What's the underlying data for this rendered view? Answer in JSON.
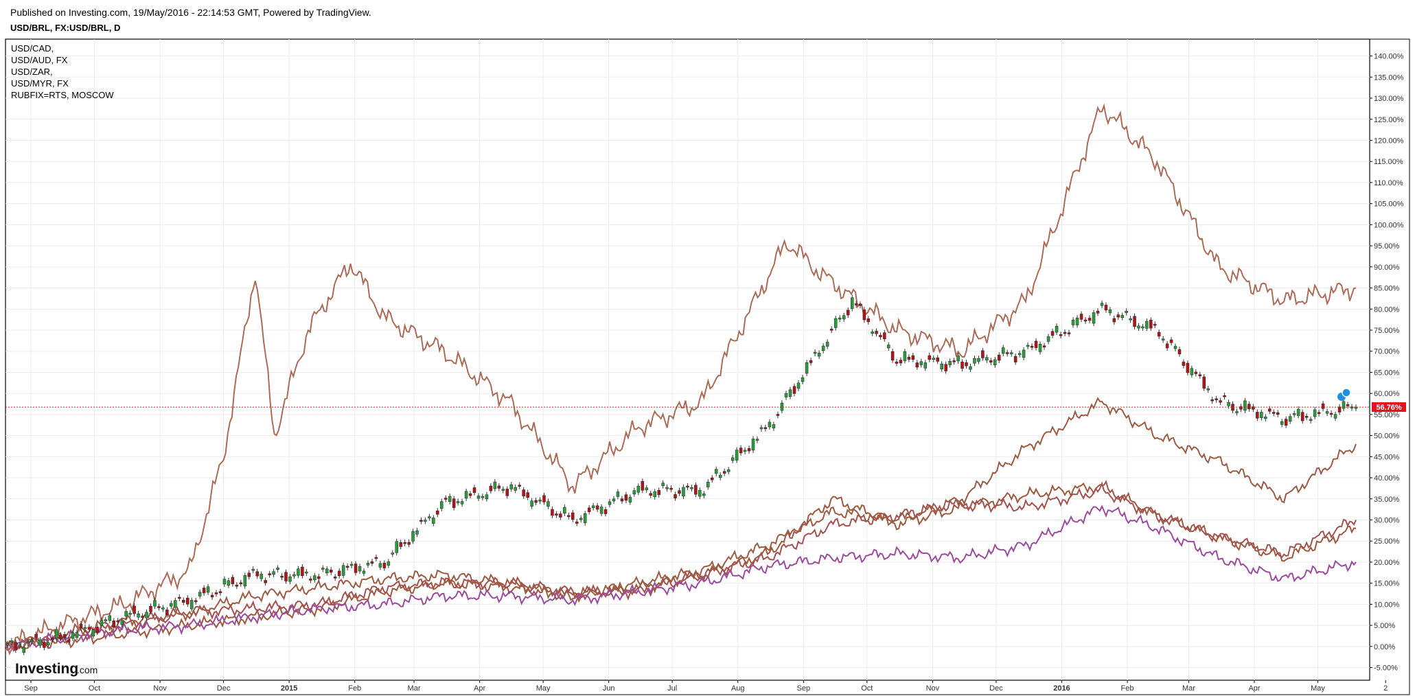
{
  "header": {
    "published": "Published on Investing.com, 19/May/2016 - 22:14:53 GMT, Powered by TradingView.",
    "title": "USD/BRL, FX:USD/BRL, D"
  },
  "brand": {
    "logo_main": "Investing",
    "logo_suffix": ".com"
  },
  "price_badge": "56.76%",
  "colors": {
    "brl_up": "#2e9b3c",
    "brl_down": "#b3141a",
    "cad": "#a0563a",
    "aud": "#a5504f",
    "zar": "#9d5a43",
    "myr": "#9b4a9e",
    "rub": "#ad6a56",
    "current_line": "#e8111a",
    "grid": "#ebebeb"
  },
  "chart_data": {
    "type": "line",
    "title": "USD/BRL, FX:USD/BRL, D",
    "ylim": [
      -8,
      144
    ],
    "y_ticks": [
      "-5.00%",
      "0.00%",
      "5.00%",
      "10.00%",
      "15.00%",
      "20.00%",
      "25.00%",
      "30.00%",
      "35.00%",
      "40.00%",
      "45.00%",
      "50.00%",
      "55.00%",
      "60.00%",
      "65.00%",
      "70.00%",
      "75.00%",
      "80.00%",
      "85.00%",
      "90.00%",
      "95.00%",
      "100.00%",
      "105.00%",
      "110.00%",
      "115.00%",
      "120.00%",
      "125.00%",
      "130.00%",
      "135.00%",
      "140.00%"
    ],
    "x_ticks": [
      "Sep",
      "Oct",
      "Nov",
      "Dec",
      "2015",
      "Feb",
      "Mar",
      "Apr",
      "May",
      "Jun",
      "Jul",
      "Aug",
      "Sep",
      "Oct",
      "Nov",
      "Dec",
      "2016",
      "Feb",
      "Mar",
      "Apr",
      "May",
      "2"
    ],
    "grid": true,
    "legend_position": "top-left",
    "current_value": 56.76,
    "series": [
      {
        "name": "USD/CAD,",
        "role": "compare",
        "x": [
          "2014-08-20",
          "2014-09-15",
          "2014-10-15",
          "2014-11-15",
          "2014-12-15",
          "2015-01-15",
          "2015-02-15",
          "2015-03-15",
          "2015-04-15",
          "2015-05-15",
          "2015-06-15",
          "2015-07-15",
          "2015-08-15",
          "2015-09-15",
          "2015-10-15",
          "2015-11-15",
          "2015-12-15",
          "2016-01-20",
          "2016-02-15",
          "2016-03-15",
          "2016-04-15",
          "2016-05-19"
        ],
        "values": [
          0,
          1,
          3,
          5,
          7,
          9,
          13,
          15,
          14,
          12,
          14,
          17,
          22,
          35,
          29,
          33,
          36,
          38,
          31,
          26,
          21,
          28
        ]
      },
      {
        "name": "USD/AUD, FX",
        "role": "compare",
        "x": [
          "2014-08-20",
          "2014-09-15",
          "2014-10-15",
          "2014-11-15",
          "2014-12-15",
          "2015-01-15",
          "2015-02-15",
          "2015-03-15",
          "2015-04-15",
          "2015-05-15",
          "2015-06-15",
          "2015-07-15",
          "2015-08-15",
          "2015-09-15",
          "2015-10-15",
          "2015-11-15",
          "2015-12-15",
          "2016-01-20",
          "2016-02-15",
          "2016-03-15",
          "2016-04-15",
          "2016-05-19"
        ],
        "values": [
          0,
          2,
          5,
          8,
          9,
          10,
          14,
          15,
          15,
          13,
          13,
          17,
          21,
          29,
          31,
          34,
          33,
          37,
          31,
          26,
          22,
          30
        ]
      },
      {
        "name": "USD/ZAR,",
        "role": "compare",
        "x": [
          "2014-08-20",
          "2014-09-15",
          "2014-10-15",
          "2014-11-15",
          "2014-12-15",
          "2015-01-15",
          "2015-02-15",
          "2015-03-15",
          "2015-04-15",
          "2015-05-15",
          "2015-06-15",
          "2015-07-15",
          "2015-08-15",
          "2015-09-15",
          "2015-10-15",
          "2015-11-15",
          "2015-12-15",
          "2016-01-20",
          "2016-02-15",
          "2016-03-15",
          "2016-04-15",
          "2016-05-19"
        ],
        "values": [
          0,
          3,
          6,
          8,
          12,
          14,
          16,
          17,
          15,
          12,
          15,
          18,
          24,
          32,
          30,
          35,
          47,
          58,
          50,
          44,
          35,
          48
        ]
      },
      {
        "name": "USD/MYR, FX",
        "role": "compare",
        "x": [
          "2014-08-20",
          "2014-09-15",
          "2014-10-15",
          "2014-11-15",
          "2014-12-15",
          "2015-01-15",
          "2015-02-15",
          "2015-03-15",
          "2015-04-15",
          "2015-05-15",
          "2015-06-15",
          "2015-07-15",
          "2015-08-15",
          "2015-09-15",
          "2015-10-15",
          "2015-11-15",
          "2015-12-15",
          "2016-01-20",
          "2016-02-15",
          "2016-03-15",
          "2016-04-15",
          "2016-05-19"
        ],
        "values": [
          0,
          2,
          4,
          5,
          7,
          9,
          10,
          12,
          12,
          11,
          13,
          15,
          19,
          21,
          22,
          21,
          24,
          33,
          28,
          21,
          16,
          20
        ]
      },
      {
        "name": "RUBFIX=RTS, MOSCOW",
        "role": "compare",
        "x": [
          "2014-08-20",
          "2014-09-15",
          "2014-10-15",
          "2014-11-15",
          "2014-12-01",
          "2014-12-16",
          "2014-12-25",
          "2015-01-10",
          "2015-01-30",
          "2015-02-15",
          "2015-03-15",
          "2015-04-15",
          "2015-05-15",
          "2015-06-15",
          "2015-07-15",
          "2015-08-24",
          "2015-09-10",
          "2015-10-15",
          "2015-11-15",
          "2015-12-15",
          "2016-01-20",
          "2016-02-15",
          "2016-03-15",
          "2016-04-15",
          "2016-05-19"
        ],
        "values": [
          0,
          5,
          10,
          18,
          45,
          89,
          50,
          75,
          91,
          78,
          70,
          58,
          38,
          52,
          58,
          96,
          88,
          75,
          70,
          82,
          128,
          115,
          90,
          82,
          85
        ]
      },
      {
        "name": "USD/BRL",
        "role": "main",
        "x": [
          "2014-08-20",
          "2014-09-15",
          "2014-10-15",
          "2014-11-15",
          "2014-12-15",
          "2015-01-15",
          "2015-02-15",
          "2015-03-15",
          "2015-04-15",
          "2015-05-15",
          "2015-06-15",
          "2015-07-15",
          "2015-08-15",
          "2015-09-24",
          "2015-10-15",
          "2015-11-15",
          "2015-12-15",
          "2016-01-20",
          "2016-02-15",
          "2016-03-15",
          "2016-04-15",
          "2016-05-19"
        ],
        "values": [
          0,
          2,
          7,
          11,
          17,
          17,
          20,
          34,
          38,
          30,
          37,
          37,
          52,
          82,
          68,
          67,
          70,
          80,
          75,
          58,
          54,
          56.76
        ]
      }
    ]
  }
}
